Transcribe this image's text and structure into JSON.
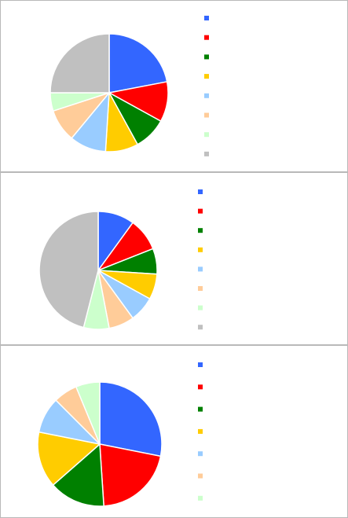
{
  "chart_data": [
    {
      "type": "pie",
      "title": "",
      "categories": [
        "",
        "",
        "",
        "",
        "",
        "",
        "",
        ""
      ],
      "values": [
        22,
        11,
        9,
        9,
        10,
        9,
        5,
        25
      ],
      "colors": [
        "#3366ff",
        "#ff0000",
        "#008000",
        "#ffcc00",
        "#99ccff",
        "#ffcc99",
        "#ccffcc",
        "#c0c0c0"
      ],
      "legend": "right",
      "start_angle_deg": 0,
      "direction": "clockwise"
    },
    {
      "type": "pie",
      "title": "",
      "categories": [
        "",
        "",
        "",
        "",
        "",
        "",
        "",
        ""
      ],
      "values": [
        10,
        9,
        7,
        7,
        7,
        7,
        7,
        46
      ],
      "colors": [
        "#3366ff",
        "#ff0000",
        "#008000",
        "#ffcc00",
        "#99ccff",
        "#ffcc99",
        "#ccffcc",
        "#c0c0c0"
      ],
      "legend": "right",
      "start_angle_deg": 0,
      "direction": "clockwise"
    },
    {
      "type": "pie",
      "title": "",
      "categories": [
        "",
        "",
        "",
        "",
        "",
        "",
        ""
      ],
      "values": [
        27,
        20,
        14,
        14,
        9,
        6,
        6
      ],
      "colors": [
        "#3366ff",
        "#ff0000",
        "#008000",
        "#ffcc00",
        "#99ccff",
        "#ffcc99",
        "#ccffcc"
      ],
      "legend": "right",
      "start_angle_deg": 0,
      "direction": "clockwise"
    }
  ]
}
